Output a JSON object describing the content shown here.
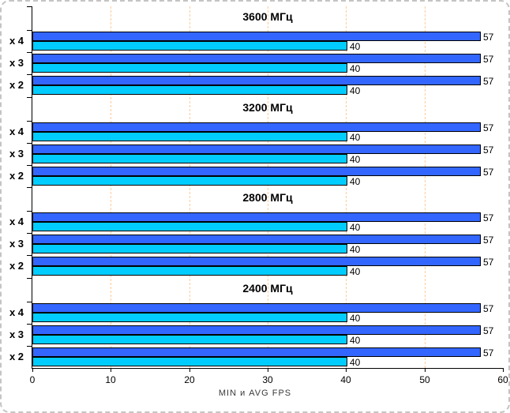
{
  "page": {
    "background": "#FFFFFF",
    "outer_border_color": "#C4C4C4"
  },
  "chart_data": {
    "type": "bar",
    "orientation": "horizontal",
    "title": "",
    "xlabel": "MIN и AVG FPS",
    "ylabel": "",
    "xlim": [
      0,
      60
    ],
    "xticks": [
      "0",
      "10",
      "20",
      "30",
      "40",
      "50",
      "60"
    ],
    "xtick_values": [
      0,
      10,
      20,
      30,
      40,
      50,
      60
    ],
    "gridlines_x": [
      10,
      20,
      30,
      40,
      50
    ],
    "grid_on": true,
    "grid_color": "#FFCC99",
    "axis_color": "#000000",
    "bar_colors": [
      "#3366FF",
      "#00CCFF"
    ],
    "legend_position": "none",
    "groups": [
      {
        "title": "3600 МГц",
        "rows": [
          {
            "label": "x 4",
            "values": [
              57,
              40
            ]
          },
          {
            "label": "x 3",
            "values": [
              57,
              40
            ]
          },
          {
            "label": "x 2",
            "values": [
              57,
              40
            ]
          }
        ]
      },
      {
        "title": "3200 МГц",
        "rows": [
          {
            "label": "x 4",
            "values": [
              57,
              40
            ]
          },
          {
            "label": "x 3",
            "values": [
              57,
              40
            ]
          },
          {
            "label": "x 2",
            "values": [
              57,
              40
            ]
          }
        ]
      },
      {
        "title": "2800 МГц",
        "rows": [
          {
            "label": "x 4",
            "values": [
              57,
              40
            ]
          },
          {
            "label": "x 3",
            "values": [
              57,
              40
            ]
          },
          {
            "label": "x 2",
            "values": [
              57,
              40
            ]
          }
        ]
      },
      {
        "title": "2400 МГц",
        "rows": [
          {
            "label": "x 4",
            "values": [
              57,
              40
            ]
          },
          {
            "label": "x 3",
            "values": [
              57,
              40
            ]
          },
          {
            "label": "x 2",
            "values": [
              57,
              40
            ]
          }
        ]
      }
    ]
  }
}
